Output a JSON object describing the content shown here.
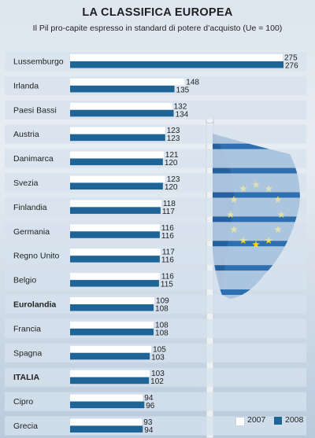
{
  "title": "LA CLASSIFICA EUROPEA",
  "subtitle": "Il Pil pro-capite espresso in standard di potere d’acquisto (Ue = 100)",
  "colors": {
    "s2007": "#ffffff",
    "s2008": "#1f6497",
    "band": "#d6e2ee",
    "flag": "#2d6fb0",
    "stars": "#ffd400"
  },
  "chart_data": {
    "type": "bar",
    "orientation": "horizontal",
    "title": "LA CLASSIFICA EUROPEA",
    "subtitle": "Il Pil pro-capite espresso in standard di potere d’acquisto (Ue = 100)",
    "categories": [
      "Lussemburgo",
      "Irlanda",
      "Paesi Bassi",
      "Austria",
      "Danimarca",
      "Svezia",
      "Finlandia",
      "Germania",
      "Regno Unito",
      "Belgio",
      "Eurolandia",
      "Francia",
      "Spagna",
      "ITALIA",
      "Cipro",
      "Grecia"
    ],
    "bold_categories": [
      "Eurolandia",
      "ITALIA"
    ],
    "series": [
      {
        "name": "2007",
        "color": "#ffffff",
        "values": [
          275,
          148,
          132,
          123,
          121,
          123,
          118,
          116,
          117,
          116,
          109,
          108,
          105,
          103,
          94,
          93
        ]
      },
      {
        "name": "2008",
        "color": "#1f6497",
        "values": [
          276,
          135,
          134,
          123,
          120,
          120,
          117,
          116,
          116,
          115,
          108,
          108,
          103,
          102,
          96,
          94
        ]
      }
    ],
    "legend": {
      "position": "bottom-right",
      "items": [
        "2007",
        "2008"
      ]
    },
    "xlim": [
      0,
      280
    ],
    "grid": false
  }
}
